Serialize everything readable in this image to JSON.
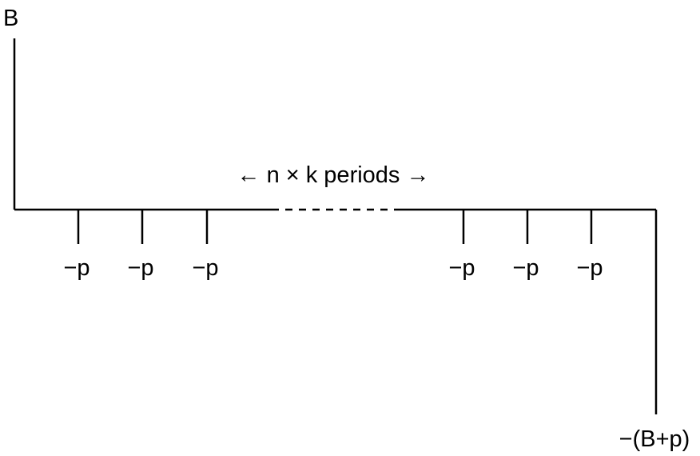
{
  "diagram": {
    "initial_flow_label": "B",
    "period_label": "← n × k periods →",
    "payment_label": "−p",
    "final_flow_label": "−(B+p)",
    "left_payment_count": 3,
    "right_payment_count": 3
  }
}
